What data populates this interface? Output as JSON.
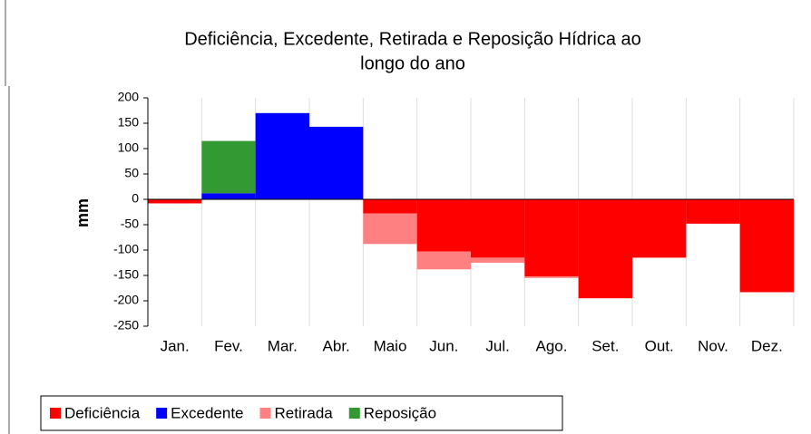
{
  "chart_data": {
    "type": "stacked_bar",
    "title": "Deficiência, Excedente, Retirada e Reposição Hídrica ao",
    "title_line2": "longo do ano",
    "ylabel": "mm",
    "categories": [
      "Jan.",
      "Fev.",
      "Mar.",
      "Abr.",
      "Maio",
      "Jun.",
      "Jul.",
      "Ago.",
      "Set.",
      "Out.",
      "Nov.",
      "Dez."
    ],
    "series": [
      {
        "name": "Deficiência",
        "color": "#ff0000",
        "values": [
          -8,
          0,
          0,
          0,
          -28,
          -103,
          -115,
          -152,
          -195,
          -115,
          -48,
          -183
        ]
      },
      {
        "name": "Excedente",
        "color": "#0000ff",
        "values": [
          0,
          12,
          170,
          143,
          0,
          0,
          0,
          0,
          0,
          0,
          0,
          0
        ]
      },
      {
        "name": "Retirada",
        "color": "#ff8080",
        "values": [
          0,
          0,
          0,
          0,
          -60,
          -35,
          -10,
          -3,
          0,
          0,
          0,
          0
        ]
      },
      {
        "name": "Reposição",
        "color": "#339933",
        "values": [
          0,
          103,
          0,
          0,
          0,
          0,
          0,
          0,
          0,
          0,
          0,
          0
        ]
      }
    ],
    "ylim": [
      -250,
      200
    ],
    "yticks": [
      -250,
      -200,
      -150,
      -100,
      -50,
      0,
      50,
      100,
      150,
      200
    ],
    "grid": true,
    "legend": "bottom"
  }
}
